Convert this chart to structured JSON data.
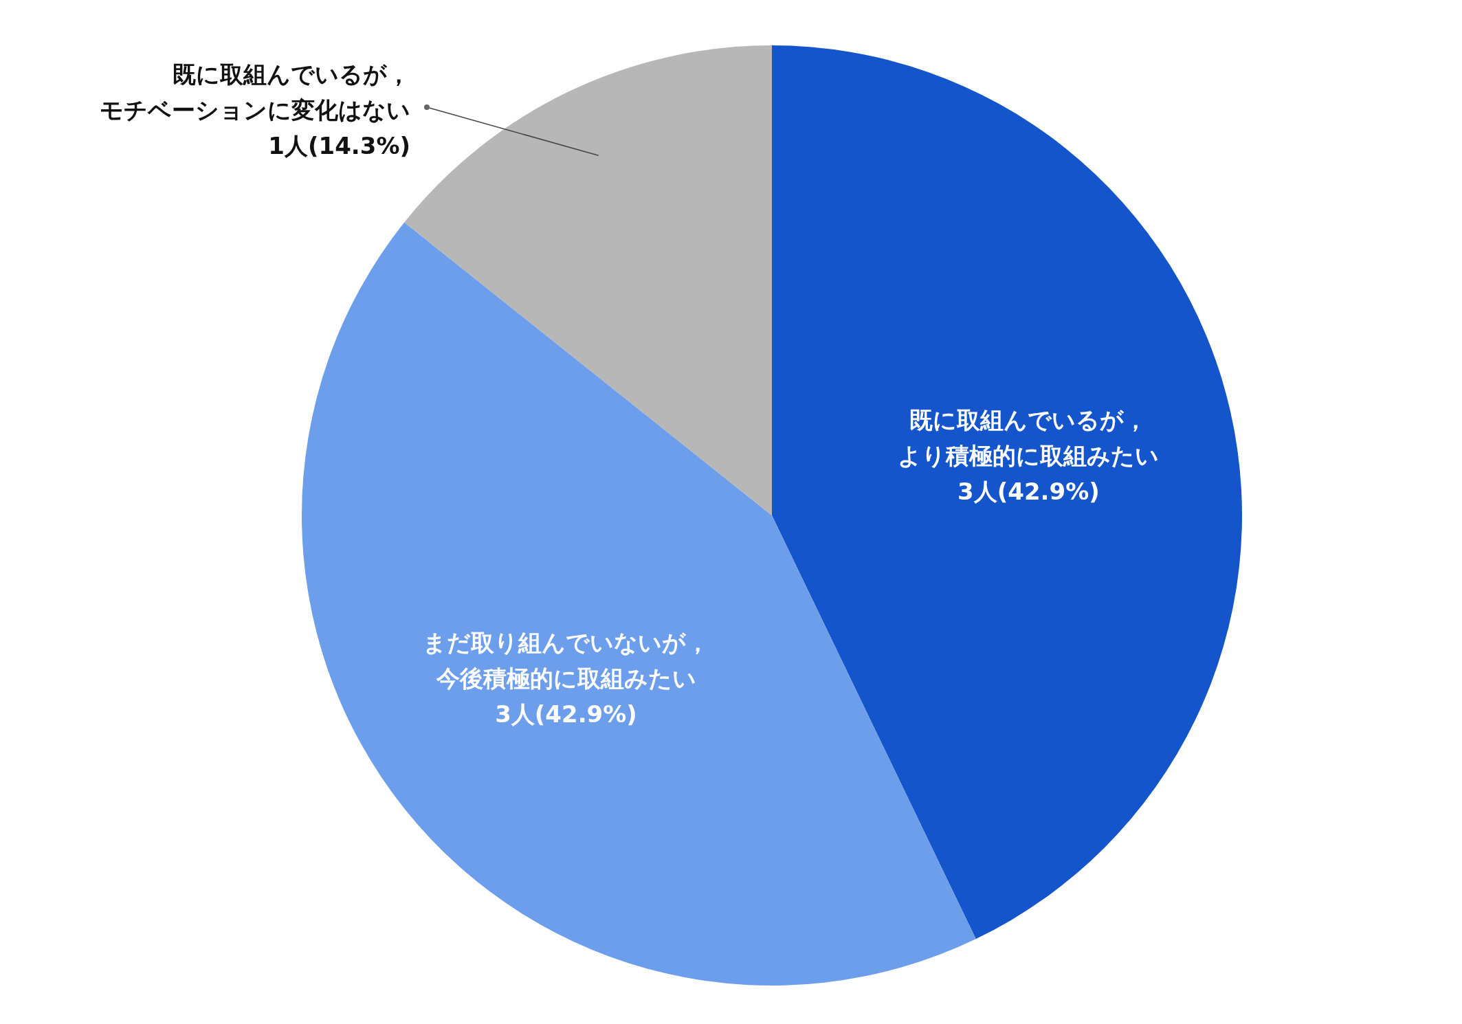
{
  "chart_data": {
    "type": "pie",
    "categories": [
      "既に取組んでいるが，より積極的に取組みたい",
      "まだ取り組んでいないが，今後積極的に取組みたい",
      "既に取組んでいるが，モチベーションに変化はない"
    ],
    "values": [
      3,
      3,
      1
    ],
    "value_labels": [
      "3人(42.9%)",
      "3人(42.9%)",
      "1人(14.3%)"
    ],
    "colors": [
      "#1455cc",
      "#6d9eeb",
      "#b7b7b7"
    ]
  }
}
